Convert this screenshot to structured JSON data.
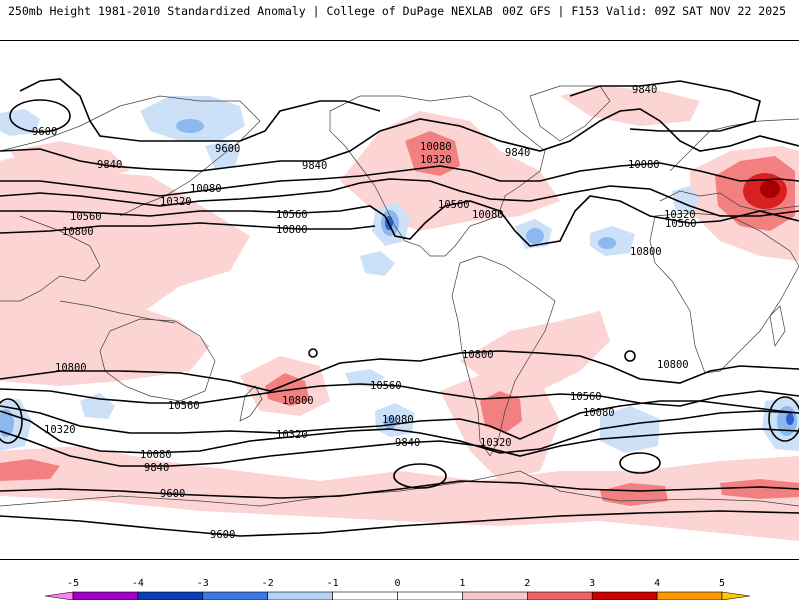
{
  "header": {
    "left": "250mb Height 1981-2010 Standardized Anomaly | College of DuPage NEXLAB",
    "right": "00Z GFS | F153 Valid: 09Z SAT NOV 22 2025"
  },
  "contour_labels": {
    "c9600_a": "9600",
    "c9600_b": "9600",
    "c9600_c": "9600",
    "c9600_d": "9600",
    "c9840_a": "9840",
    "c9840_b": "9840",
    "c9840_c": "9840",
    "c9840_d": "9840",
    "c9840_e": "9840",
    "c9840_f": "9840",
    "c10080_a": "10080",
    "c10080_b": "10080",
    "c10080_c": "10080",
    "c10080_d": "10080",
    "c10080_e": "10080",
    "c10080_f": "10080",
    "c10080_g": "10080",
    "c10080_h": "10080",
    "c10320_a": "10320",
    "c10320_b": "10320",
    "c10320_c": "10320",
    "c10320_d": "10320",
    "c10320_e": "10320",
    "c10320_f": "10320",
    "c10560_a": "10560",
    "c10560_b": "10560",
    "c10560_c": "10560",
    "c10560_d": "10560",
    "c10560_e": "10560",
    "c10560_f": "10560",
    "c10560_g": "10560",
    "c10800_a": "10800",
    "c10800_b": "10800",
    "c10800_c": "10800",
    "c10800_d": "10800",
    "c10800_e": "10800",
    "c10800_f": "10800",
    "c10800_g": "10800",
    "c10800_h": "10800",
    "c10800_i": "10800"
  },
  "colorbar": {
    "ticks": [
      "-5",
      "-4",
      "-3",
      "-2",
      "-1",
      "0",
      "1",
      "2",
      "3",
      "4",
      "5"
    ],
    "colors": [
      "#ff80ff",
      "#a000c8",
      "#0a3cb4",
      "#3c78e6",
      "#b4d2f5",
      "#ffffff",
      "#ffffff",
      "#fac8c8",
      "#f06464",
      "#c80000",
      "#ff9600",
      "#ffc800"
    ]
  },
  "colors": {
    "neg1": "#cce0f8",
    "neg2": "#8cb8f0",
    "neg3": "#2f5fd0",
    "pos1": "#fcd4d4",
    "pos2": "#f28080",
    "pos3": "#d82020",
    "pos4": "#a80000",
    "contour": "#000000",
    "coast": "#404040"
  }
}
